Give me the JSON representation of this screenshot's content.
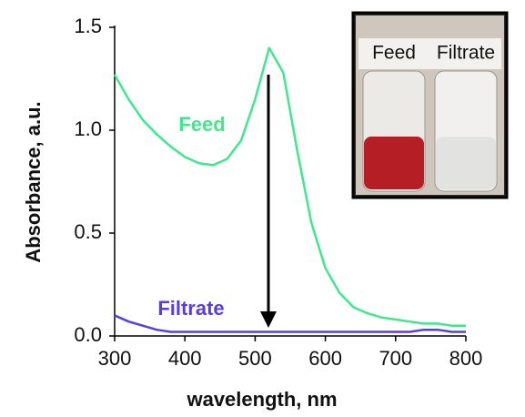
{
  "chart_data": {
    "type": "line",
    "x_label": "wavelength, nm",
    "y_label": "Absorbance, a.u.",
    "x": [
      300,
      320,
      340,
      360,
      380,
      400,
      420,
      440,
      460,
      480,
      500,
      520,
      540,
      560,
      580,
      600,
      620,
      640,
      660,
      680,
      700,
      720,
      740,
      760,
      780,
      800
    ],
    "series": [
      {
        "name": "Feed",
        "color": "#3fe88c",
        "values": [
          1.27,
          1.15,
          1.05,
          0.98,
          0.92,
          0.87,
          0.84,
          0.83,
          0.86,
          0.95,
          1.15,
          1.4,
          1.28,
          0.9,
          0.55,
          0.33,
          0.21,
          0.14,
          0.11,
          0.09,
          0.08,
          0.07,
          0.06,
          0.06,
          0.05,
          0.05
        ]
      },
      {
        "name": "Filtrate",
        "color": "#5a3ce0",
        "values": [
          0.1,
          0.07,
          0.05,
          0.03,
          0.02,
          0.02,
          0.02,
          0.02,
          0.02,
          0.02,
          0.02,
          0.02,
          0.02,
          0.02,
          0.02,
          0.02,
          0.02,
          0.02,
          0.02,
          0.02,
          0.02,
          0.02,
          0.03,
          0.03,
          0.02,
          0.02
        ]
      }
    ],
    "xlim": [
      300,
      800
    ],
    "ylim": [
      0,
      1.5
    ],
    "xticks": [
      300,
      400,
      500,
      600,
      700,
      800
    ],
    "yticks": [
      {
        "value": 0,
        "label": "0.0"
      },
      {
        "value": 0.5,
        "label": "0.5"
      },
      {
        "value": 1,
        "label": "1.0"
      },
      {
        "value": 1.5,
        "label": "1.5"
      }
    ],
    "inset": {
      "labels": [
        "Feed",
        "Filtrate"
      ]
    }
  }
}
